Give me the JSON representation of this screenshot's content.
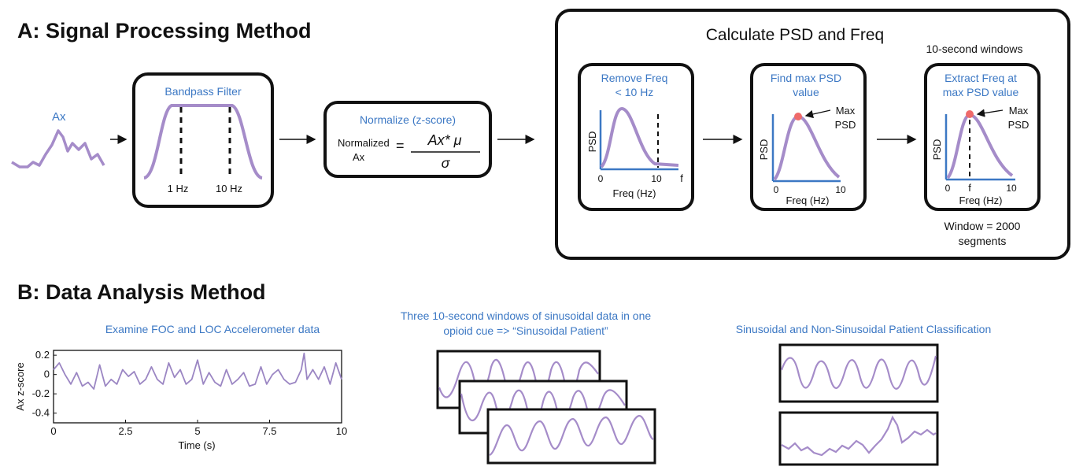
{
  "section_a": {
    "title": "A: Signal Processing Method",
    "ax_label": "Ax",
    "bandpass": {
      "title": "Bandpass Filter",
      "low": "1 Hz",
      "high": "10 Hz"
    },
    "normalize": {
      "title": "Normalize (z-score)",
      "lhs_line1": "Normalized",
      "lhs_line2": "Ax",
      "equals": "=",
      "numerator": "Ax* μ",
      "denominator": "σ"
    },
    "psd_panel": {
      "title": "Calculate PSD and Freq",
      "windows_note": "10-second windows",
      "window_note_line1": "Window = 2000",
      "window_note_line2": "segments",
      "box1": {
        "title_line1": "Remove Freq",
        "title_line2": "< 10 Hz",
        "ylabel": "PSD",
        "xlabel": "Freq (Hz)",
        "tick0": "0",
        "tick10": "10",
        "tickf": "f"
      },
      "box2": {
        "title_line1": "Find max PSD",
        "title_line2": "value",
        "ylabel": "PSD",
        "xlabel": "Freq (Hz)",
        "tick0": "0",
        "tick10": "10",
        "ann1": "Max",
        "ann2": "PSD"
      },
      "box3": {
        "title_line1": "Extract Freq at",
        "title_line2": "max PSD value",
        "ylabel": "PSD",
        "xlabel": "Freq (Hz)",
        "tick0": "0",
        "tickf": "f",
        "tick10": "10",
        "ann1": "Max",
        "ann2": "PSD"
      }
    }
  },
  "section_b": {
    "title": "B: Data Analysis Method",
    "panel1_title": "Examine FOC and LOC Accelerometer data",
    "panel2_title_line1": "Three 10-second windows of sinusoidal data in one",
    "panel2_title_line2": "opioid cue => “Sinusoidal Patient”",
    "panel3_title": "Sinusoidal and Non-Sinusoidal Patient Classification"
  },
  "chart_data": {
    "type": "line",
    "title": "Examine FOC and LOC Accelerometer data",
    "xlabel": "Time (s)",
    "ylabel": "Ax z-score",
    "xlim": [
      0,
      10
    ],
    "ylim": [
      -0.5,
      0.25
    ],
    "xticks": [
      "0",
      "2.5",
      "5",
      "7.5",
      "10"
    ],
    "yticks": [
      "0.2",
      "0",
      "-0.2",
      "-0.4"
    ],
    "x": [
      0,
      0.2,
      0.4,
      0.6,
      0.8,
      1.0,
      1.2,
      1.4,
      1.6,
      1.8,
      2.0,
      2.2,
      2.4,
      2.6,
      2.8,
      3.0,
      3.2,
      3.4,
      3.6,
      3.8,
      4.0,
      4.2,
      4.4,
      4.6,
      4.8,
      5.0,
      5.2,
      5.4,
      5.6,
      5.8,
      6.0,
      6.2,
      6.4,
      6.6,
      6.8,
      7.0,
      7.2,
      7.4,
      7.6,
      7.8,
      8.0,
      8.2,
      8.4,
      8.6,
      8.7,
      8.8,
      9.0,
      9.2,
      9.4,
      9.6,
      9.8,
      10.0
    ],
    "values": [
      0.05,
      0.12,
      0.0,
      -0.1,
      0.02,
      -0.12,
      -0.08,
      -0.15,
      0.1,
      -0.12,
      -0.05,
      -0.1,
      0.05,
      -0.02,
      0.03,
      -0.1,
      -0.05,
      0.08,
      -0.05,
      -0.1,
      0.12,
      -0.03,
      0.05,
      -0.1,
      -0.05,
      0.15,
      -0.1,
      0.02,
      -0.08,
      -0.12,
      0.05,
      -0.1,
      -0.05,
      0.02,
      -0.12,
      -0.1,
      0.08,
      -0.1,
      0.0,
      0.05,
      -0.05,
      -0.1,
      -0.08,
      0.05,
      0.22,
      -0.05,
      0.05,
      -0.05,
      0.08,
      -0.1,
      0.12,
      -0.05
    ],
    "series": [
      {
        "name": "Ax z-score",
        "color": "#9b86c3"
      }
    ]
  },
  "colors": {
    "blue_text": "#3c78c4",
    "signal": "#a58cc9",
    "axis_blue": "#3c78c4",
    "peak_red": "#ef6a6a"
  }
}
